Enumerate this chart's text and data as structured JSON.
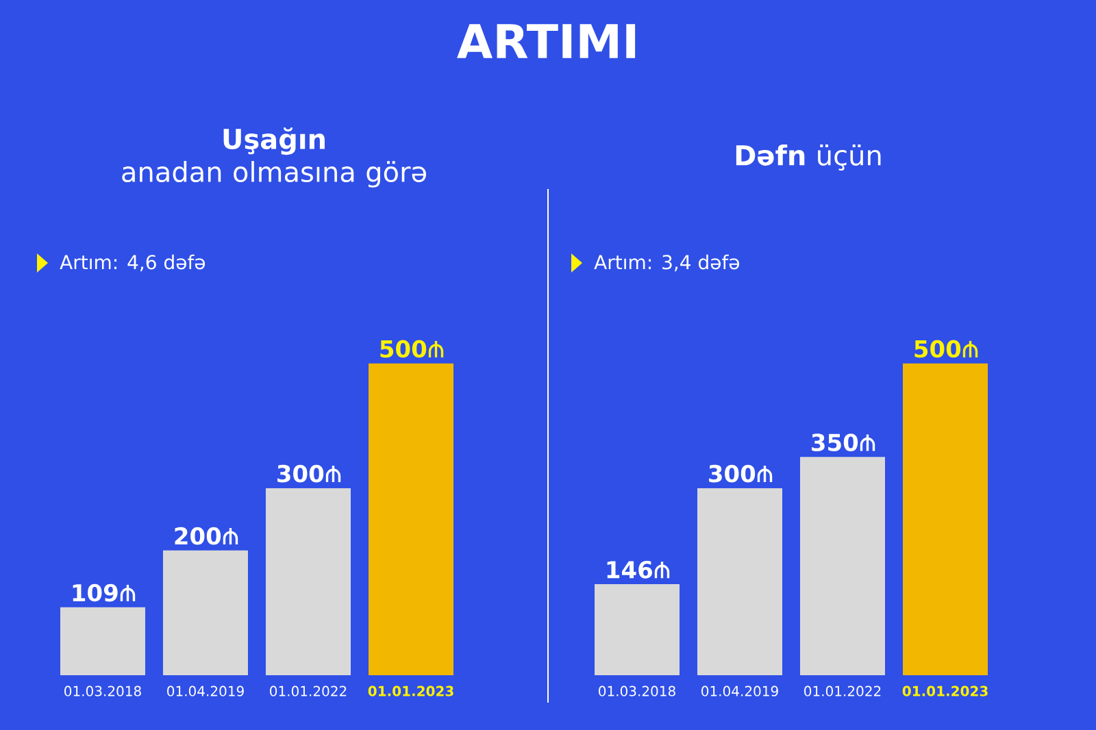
{
  "chart_data": [
    {
      "type": "bar",
      "title": "ARTIMI",
      "subtitle": "**Uşağın**\nanadan olmasına görə",
      "annotations": [
        "Artım: 4,6 dəfə"
      ],
      "categories": [
        "01.03.2018",
        "01.04.2019",
        "01.01.2022",
        "01.01.2023"
      ],
      "values": [
        109,
        200,
        300,
        500
      ],
      "data_labels": true,
      "colors": [
        "#d9d9d9",
        "#d9d9d9",
        "#d9d9d9",
        "#f2b700"
      ],
      "tick_labels": "x"
    },
    {
      "type": "bar",
      "subtitle": "**Dəfn** üçün",
      "annotations": [
        "Artım: 3,4 dəfə"
      ],
      "categories": [
        "01.03.2018",
        "01.04.2019",
        "01.01.2022",
        "01.01.2023"
      ],
      "values": [
        146,
        300,
        350,
        500
      ],
      "data_labels": true,
      "colors": [
        "#d9d9d9",
        "#d9d9d9",
        "#d9d9d9",
        "#f2b700"
      ],
      "tick_labels": "x"
    }
  ]
}
